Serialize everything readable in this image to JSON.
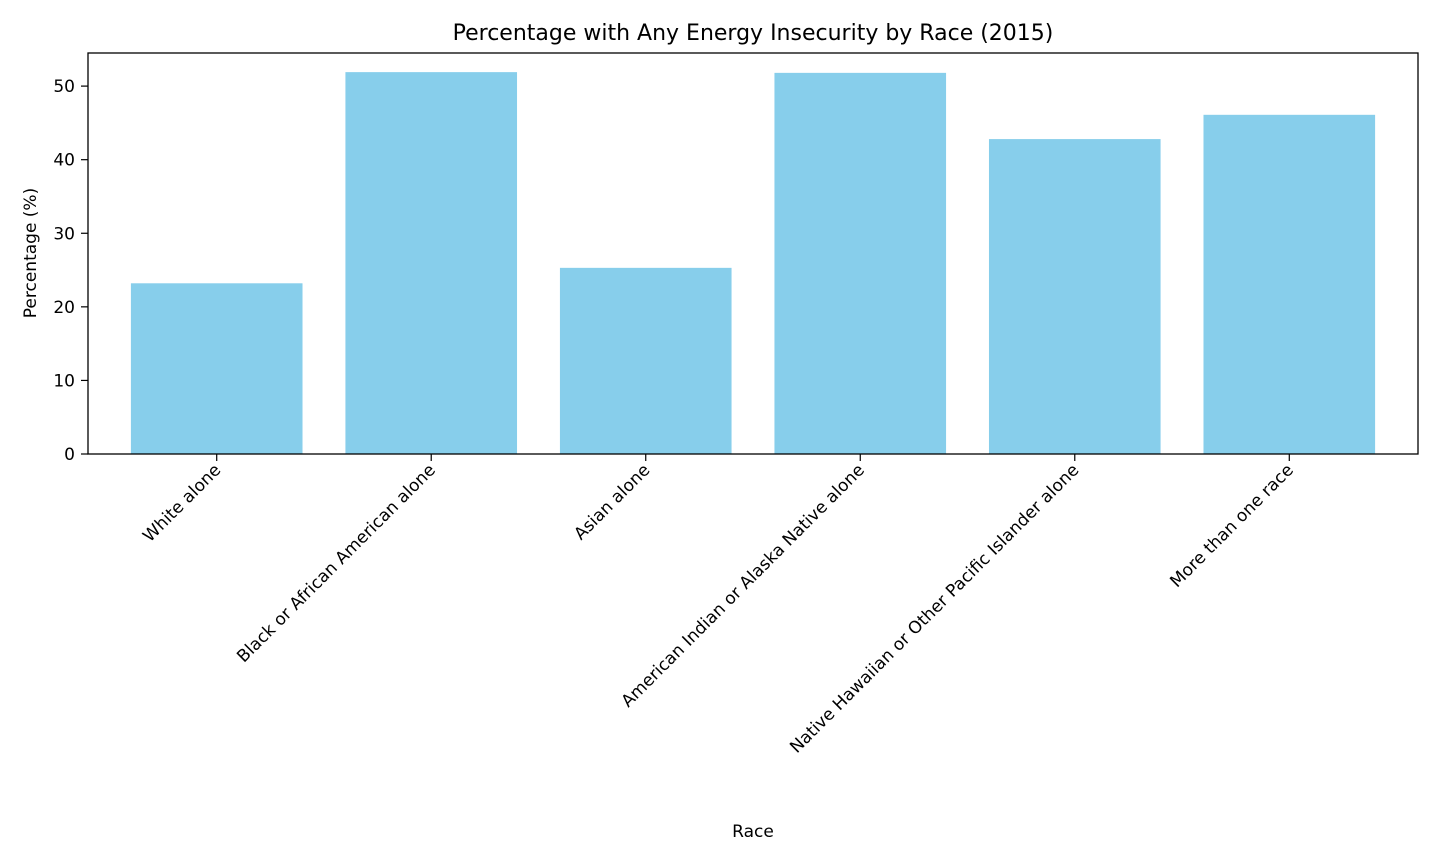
{
  "chart_data": {
    "type": "bar",
    "title": "Percentage with Any Energy Insecurity by Race (2015)",
    "xlabel": "Race",
    "ylabel": "Percentage (%)",
    "categories": [
      "White alone",
      "Black or African American alone",
      "Asian alone",
      "American Indian or Alaska Native alone",
      "Native Hawaiian or Other Pacific Islander alone",
      "More than one race"
    ],
    "values": [
      23.2,
      51.9,
      25.3,
      51.8,
      42.8,
      46.1
    ],
    "ylim": [
      0,
      54.5
    ],
    "yticks": [
      0,
      10,
      20,
      30,
      40,
      50
    ],
    "bar_color": "#87CEEB",
    "grid": false,
    "legend": "none"
  }
}
